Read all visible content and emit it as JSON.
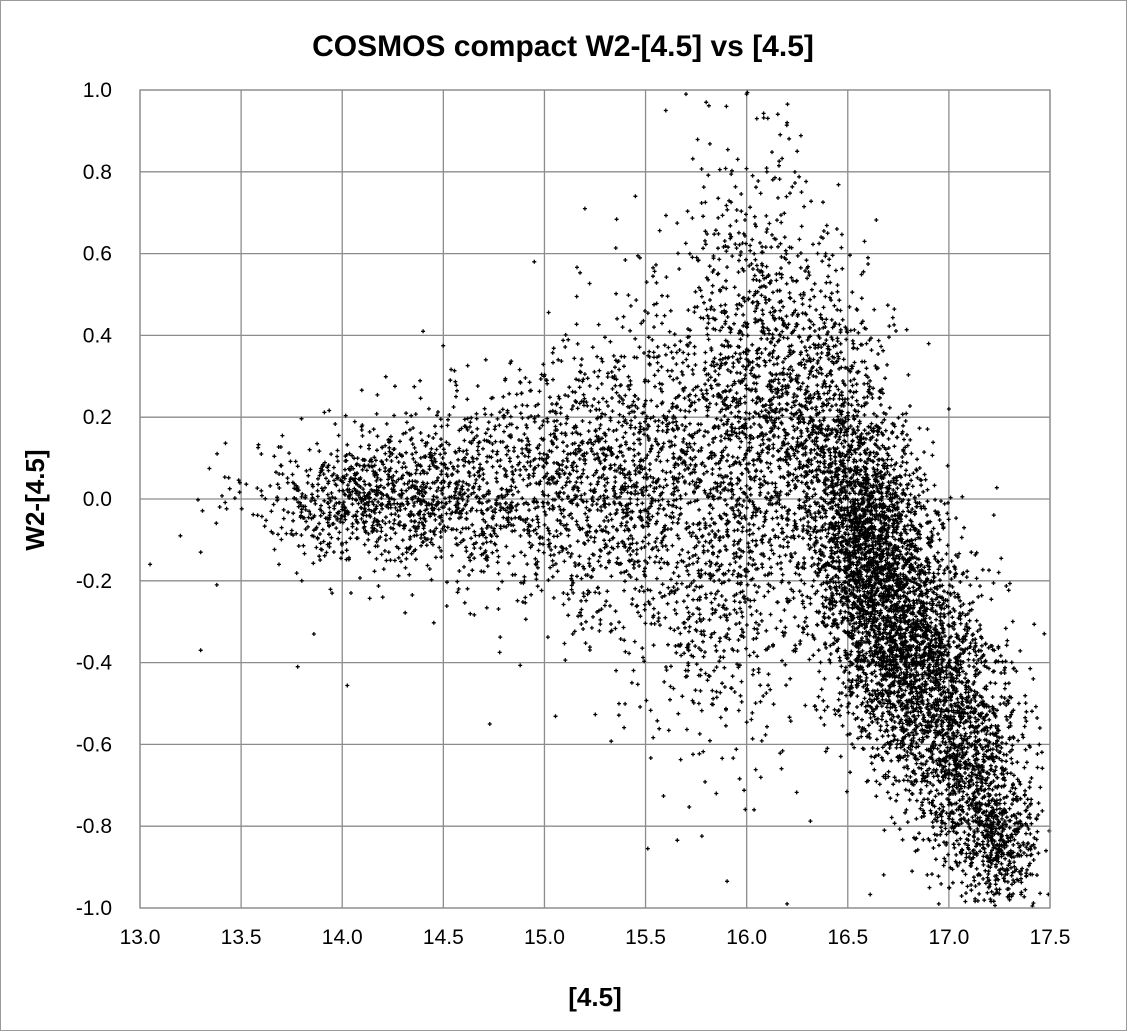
{
  "chart_data": {
    "type": "scatter",
    "title": "COSMOS compact W2-[4.5] vs [4.5]",
    "xlabel": "[4.5]",
    "ylabel": "W2-[4.5]",
    "xlim": [
      13.0,
      17.5
    ],
    "ylim": [
      -1.0,
      1.0
    ],
    "xticks": [
      "13.0",
      "13.5",
      "14.0",
      "14.5",
      "15.0",
      "15.5",
      "16.0",
      "16.5",
      "17.0",
      "17.5"
    ],
    "yticks": [
      "1.0",
      "0.8",
      "0.6",
      "0.4",
      "0.2",
      "0.0",
      "-0.2",
      "-0.4",
      "-0.6",
      "-0.8",
      "-1.0"
    ],
    "grid": true,
    "legend": "none",
    "marker_color": "#000000",
    "series": [
      {
        "points": [
          [
            13.05,
            -0.16
          ],
          [
            13.2,
            -0.09
          ],
          [
            13.3,
            -0.13
          ],
          [
            13.38,
            -0.21
          ],
          [
            13.3,
            -0.37
          ],
          [
            13.6,
            0.02
          ],
          [
            13.6,
            0.11
          ],
          [
            13.65,
            -0.03
          ],
          [
            13.7,
            -0.07
          ],
          [
            13.78,
            0.08
          ],
          [
            13.8,
            -0.2
          ],
          [
            13.78,
            -0.41
          ],
          [
            13.86,
            -0.33
          ],
          [
            13.95,
            -0.23
          ],
          [
            14.2,
            -0.24
          ],
          [
            14.4,
            0.41
          ],
          [
            14.73,
            -0.55
          ],
          [
            14.95,
            0.58
          ],
          [
            15.2,
            0.71
          ],
          [
            15.45,
            0.74
          ],
          [
            15.6,
            0.95
          ],
          [
            15.7,
            0.99
          ],
          [
            15.8,
            0.97
          ],
          [
            15.9,
            0.96
          ],
          [
            16.05,
            0.93
          ],
          [
            16.2,
            0.92
          ],
          [
            16.25,
            0.85
          ],
          [
            15.85,
            -0.72
          ],
          [
            16.2,
            -0.99
          ],
          [
            16.95,
            -0.99
          ],
          [
            17.3,
            -0.98
          ],
          [
            17.45,
            -0.56
          ],
          [
            17.48,
            -0.86
          ],
          [
            17.0,
            0.22
          ],
          [
            16.9,
            0.38
          ],
          [
            16.6,
            0.59
          ],
          [
            16.4,
            0.65
          ],
          [
            16.1,
            0.8
          ]
        ],
        "clusters": [
          {
            "center": [
              14.1,
              0.0
            ],
            "spread": [
              0.28,
              0.07
            ],
            "count": 650
          },
          {
            "center": [
              14.6,
              0.03
            ],
            "spread": [
              0.3,
              0.11
            ],
            "count": 700
          },
          {
            "center": [
              15.2,
              0.02
            ],
            "spread": [
              0.3,
              0.17
            ],
            "count": 900
          },
          {
            "center": [
              15.75,
              0.12
            ],
            "spread": [
              0.3,
              0.22
            ],
            "count": 1000
          },
          {
            "center": [
              16.05,
              0.35
            ],
            "spread": [
              0.18,
              0.25
            ],
            "count": 750
          },
          {
            "center": [
              16.4,
              0.15
            ],
            "spread": [
              0.16,
              0.2
            ],
            "count": 900
          },
          {
            "center": [
              16.55,
              -0.1
            ],
            "spread": [
              0.12,
              0.16
            ],
            "count": 1100
          },
          {
            "center": [
              16.7,
              -0.25
            ],
            "spread": [
              0.14,
              0.17
            ],
            "count": 1500
          },
          {
            "center": [
              16.9,
              -0.45
            ],
            "spread": [
              0.16,
              0.16
            ],
            "count": 1300
          },
          {
            "center": [
              17.1,
              -0.65
            ],
            "spread": [
              0.14,
              0.14
            ],
            "count": 800
          },
          {
            "center": [
              17.25,
              -0.85
            ],
            "spread": [
              0.1,
              0.08
            ],
            "count": 450
          },
          {
            "center": [
              15.9,
              -0.3
            ],
            "spread": [
              0.25,
              0.2
            ],
            "count": 450
          }
        ]
      }
    ]
  }
}
